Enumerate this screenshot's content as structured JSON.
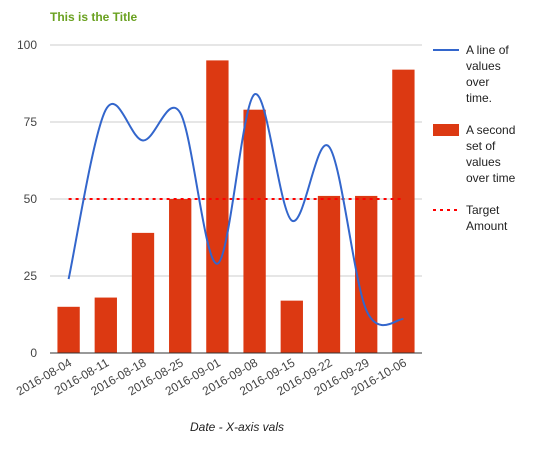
{
  "chart_data": {
    "type": "bar",
    "title": "This is the Title",
    "xlabel": "Date - X-axis vals",
    "ylabel": "",
    "ylim": [
      0,
      100
    ],
    "yticks": [
      0,
      25,
      50,
      75,
      100
    ],
    "grid": true,
    "legend_position": "right",
    "categories": [
      "2016-08-04",
      "2016-08-11",
      "2016-08-18",
      "2016-08-25",
      "2016-09-01",
      "2016-09-08",
      "2016-09-15",
      "2016-09-22",
      "2016-09-29",
      "2016-10-06"
    ],
    "series": [
      {
        "name": "A line of values over time.",
        "type": "line",
        "color": "#3366cc",
        "values": [
          24,
          79,
          69,
          78,
          29,
          84,
          43,
          67,
          14,
          11
        ]
      },
      {
        "name": "A second set of values over time",
        "type": "bar",
        "color": "#dc3912",
        "values": [
          15,
          18,
          39,
          50,
          95,
          79,
          17,
          51,
          51,
          92
        ]
      },
      {
        "name": "Target Amount",
        "type": "line",
        "style": "dotted",
        "color": "#ff0000",
        "values": [
          50,
          50,
          50,
          50,
          50,
          50,
          50,
          50,
          50,
          50
        ]
      }
    ]
  }
}
